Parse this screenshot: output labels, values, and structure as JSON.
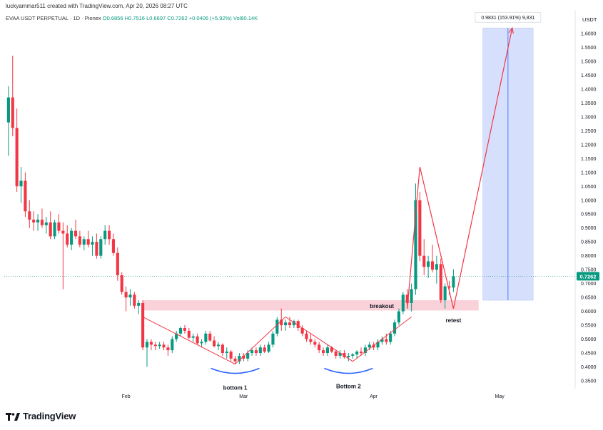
{
  "header": {
    "created_by": "luckyammar511 created with TradingView.com, Apr 20, 2026 08:27 UTC"
  },
  "ohlc_bar": {
    "symbol": "EVAA USDT PERPETUAL · 1D · Pionex",
    "open": "O0.6856",
    "high": "H0.7516",
    "low": "L0.6697",
    "close": "C0.7262",
    "change": "+0.0406 (+5.92%)",
    "volume": "Vol80.14K"
  },
  "logo": {
    "text": "TradingView",
    "icon": "tradingview-logo-icon"
  },
  "colors": {
    "up": "#089981",
    "down": "#f23645",
    "accent": "#2962ff",
    "zone": "#f7c6d0",
    "target_box": "#c9d6fb",
    "price_tag": "#089981"
  },
  "chart_data": {
    "type": "candlestick",
    "currency_label": "USDT",
    "ylim": [
      0.31,
      1.66
    ],
    "y_ticks": [
      "1.6000",
      "1.5500",
      "1.5000",
      "1.4500",
      "1.4000",
      "1.3500",
      "1.3000",
      "1.2500",
      "1.2000",
      "1.1500",
      "1.1000",
      "1.0500",
      "1.0000",
      "0.9500",
      "0.9000",
      "0.8500",
      "0.8000",
      "0.7500",
      "0.7000",
      "0.6500",
      "0.6000",
      "0.5500",
      "0.5000",
      "0.4500",
      "0.4000",
      "0.3500"
    ],
    "x_ticks": [
      {
        "label": "Feb",
        "date": "2026-02-01"
      },
      {
        "label": "Mar",
        "date": "2026-03-01"
      },
      {
        "label": "Apr",
        "date": "2026-04-01"
      },
      {
        "label": "May",
        "date": "2026-05-01"
      }
    ],
    "x_range": [
      "2026-01-03",
      "2026-05-19"
    ],
    "last_price": "0.7262",
    "candles": [
      {
        "d": "2026-01-04",
        "o": 1.28,
        "h": 1.41,
        "l": 1.16,
        "c": 1.37
      },
      {
        "d": "2026-01-05",
        "o": 1.37,
        "h": 1.52,
        "l": 1.23,
        "c": 1.26
      },
      {
        "d": "2026-01-06",
        "o": 1.26,
        "h": 1.33,
        "l": 1.03,
        "c": 1.05
      },
      {
        "d": "2026-01-07",
        "o": 1.05,
        "h": 1.12,
        "l": 0.99,
        "c": 1.07
      },
      {
        "d": "2026-01-08",
        "o": 1.07,
        "h": 1.1,
        "l": 0.94,
        "c": 0.96
      },
      {
        "d": "2026-01-09",
        "o": 0.96,
        "h": 1.0,
        "l": 0.9,
        "c": 0.93
      },
      {
        "d": "2026-01-10",
        "o": 0.93,
        "h": 0.96,
        "l": 0.89,
        "c": 0.92
      },
      {
        "d": "2026-01-11",
        "o": 0.92,
        "h": 0.95,
        "l": 0.89,
        "c": 0.93
      },
      {
        "d": "2026-01-12",
        "o": 0.93,
        "h": 0.97,
        "l": 0.9,
        "c": 0.91
      },
      {
        "d": "2026-01-13",
        "o": 0.91,
        "h": 0.94,
        "l": 0.88,
        "c": 0.92
      },
      {
        "d": "2026-01-14",
        "o": 0.92,
        "h": 0.96,
        "l": 0.86,
        "c": 0.87
      },
      {
        "d": "2026-01-15",
        "o": 0.87,
        "h": 0.93,
        "l": 0.86,
        "c": 0.92
      },
      {
        "d": "2026-01-16",
        "o": 0.92,
        "h": 0.95,
        "l": 0.88,
        "c": 0.89
      },
      {
        "d": "2026-01-17",
        "o": 0.89,
        "h": 0.92,
        "l": 0.68,
        "c": 0.88
      },
      {
        "d": "2026-01-18",
        "o": 0.88,
        "h": 0.91,
        "l": 0.83,
        "c": 0.84
      },
      {
        "d": "2026-01-19",
        "o": 0.84,
        "h": 0.9,
        "l": 0.82,
        "c": 0.89
      },
      {
        "d": "2026-01-20",
        "o": 0.89,
        "h": 0.93,
        "l": 0.86,
        "c": 0.87
      },
      {
        "d": "2026-01-21",
        "o": 0.87,
        "h": 0.89,
        "l": 0.83,
        "c": 0.84
      },
      {
        "d": "2026-01-22",
        "o": 0.84,
        "h": 0.87,
        "l": 0.82,
        "c": 0.86
      },
      {
        "d": "2026-01-23",
        "o": 0.86,
        "h": 0.89,
        "l": 0.83,
        "c": 0.84
      },
      {
        "d": "2026-01-24",
        "o": 0.84,
        "h": 0.87,
        "l": 0.8,
        "c": 0.85
      },
      {
        "d": "2026-01-25",
        "o": 0.85,
        "h": 0.88,
        "l": 0.79,
        "c": 0.8
      },
      {
        "d": "2026-01-26",
        "o": 0.8,
        "h": 0.87,
        "l": 0.79,
        "c": 0.86
      },
      {
        "d": "2026-01-27",
        "o": 0.86,
        "h": 0.91,
        "l": 0.84,
        "c": 0.89
      },
      {
        "d": "2026-01-28",
        "o": 0.89,
        "h": 0.91,
        "l": 0.84,
        "c": 0.86
      },
      {
        "d": "2026-01-29",
        "o": 0.86,
        "h": 0.88,
        "l": 0.8,
        "c": 0.81
      },
      {
        "d": "2026-01-30",
        "o": 0.81,
        "h": 0.83,
        "l": 0.71,
        "c": 0.73
      },
      {
        "d": "2026-01-31",
        "o": 0.73,
        "h": 0.74,
        "l": 0.66,
        "c": 0.67
      },
      {
        "d": "2026-02-01",
        "o": 0.67,
        "h": 0.69,
        "l": 0.6,
        "c": 0.65
      },
      {
        "d": "2026-02-02",
        "o": 0.65,
        "h": 0.68,
        "l": 0.62,
        "c": 0.66
      },
      {
        "d": "2026-02-03",
        "o": 0.66,
        "h": 0.67,
        "l": 0.61,
        "c": 0.62
      },
      {
        "d": "2026-02-04",
        "o": 0.62,
        "h": 0.64,
        "l": 0.59,
        "c": 0.63
      },
      {
        "d": "2026-02-05",
        "o": 0.63,
        "h": 0.64,
        "l": 0.46,
        "c": 0.47
      },
      {
        "d": "2026-02-06",
        "o": 0.47,
        "h": 0.5,
        "l": 0.4,
        "c": 0.49
      },
      {
        "d": "2026-02-07",
        "o": 0.49,
        "h": 0.5,
        "l": 0.46,
        "c": 0.48
      },
      {
        "d": "2026-02-08",
        "o": 0.48,
        "h": 0.49,
        "l": 0.46,
        "c": 0.475
      },
      {
        "d": "2026-02-09",
        "o": 0.475,
        "h": 0.49,
        "l": 0.465,
        "c": 0.48
      },
      {
        "d": "2026-02-10",
        "o": 0.48,
        "h": 0.49,
        "l": 0.46,
        "c": 0.47
      },
      {
        "d": "2026-02-11",
        "o": 0.47,
        "h": 0.48,
        "l": 0.44,
        "c": 0.46
      },
      {
        "d": "2026-02-12",
        "o": 0.46,
        "h": 0.51,
        "l": 0.45,
        "c": 0.5
      },
      {
        "d": "2026-02-13",
        "o": 0.5,
        "h": 0.53,
        "l": 0.49,
        "c": 0.52
      },
      {
        "d": "2026-02-14",
        "o": 0.52,
        "h": 0.545,
        "l": 0.51,
        "c": 0.54
      },
      {
        "d": "2026-02-15",
        "o": 0.54,
        "h": 0.55,
        "l": 0.52,
        "c": 0.53
      },
      {
        "d": "2026-02-16",
        "o": 0.53,
        "h": 0.54,
        "l": 0.5,
        "c": 0.505
      },
      {
        "d": "2026-02-17",
        "o": 0.505,
        "h": 0.52,
        "l": 0.49,
        "c": 0.51
      },
      {
        "d": "2026-02-18",
        "o": 0.51,
        "h": 0.52,
        "l": 0.48,
        "c": 0.485
      },
      {
        "d": "2026-02-19",
        "o": 0.485,
        "h": 0.5,
        "l": 0.47,
        "c": 0.49
      },
      {
        "d": "2026-02-20",
        "o": 0.49,
        "h": 0.53,
        "l": 0.48,
        "c": 0.52
      },
      {
        "d": "2026-02-21",
        "o": 0.52,
        "h": 0.53,
        "l": 0.49,
        "c": 0.495
      },
      {
        "d": "2026-02-22",
        "o": 0.495,
        "h": 0.51,
        "l": 0.47,
        "c": 0.475
      },
      {
        "d": "2026-02-23",
        "o": 0.475,
        "h": 0.49,
        "l": 0.46,
        "c": 0.48
      },
      {
        "d": "2026-02-24",
        "o": 0.48,
        "h": 0.485,
        "l": 0.44,
        "c": 0.45
      },
      {
        "d": "2026-02-25",
        "o": 0.45,
        "h": 0.47,
        "l": 0.43,
        "c": 0.455
      },
      {
        "d": "2026-02-26",
        "o": 0.455,
        "h": 0.46,
        "l": 0.42,
        "c": 0.43
      },
      {
        "d": "2026-02-27",
        "o": 0.43,
        "h": 0.44,
        "l": 0.41,
        "c": 0.42
      },
      {
        "d": "2026-02-28",
        "o": 0.42,
        "h": 0.45,
        "l": 0.41,
        "c": 0.44
      },
      {
        "d": "2026-03-01",
        "o": 0.44,
        "h": 0.45,
        "l": 0.42,
        "c": 0.43
      },
      {
        "d": "2026-03-02",
        "o": 0.43,
        "h": 0.46,
        "l": 0.42,
        "c": 0.45
      },
      {
        "d": "2026-03-03",
        "o": 0.45,
        "h": 0.47,
        "l": 0.44,
        "c": 0.46
      },
      {
        "d": "2026-03-04",
        "o": 0.46,
        "h": 0.47,
        "l": 0.44,
        "c": 0.45
      },
      {
        "d": "2026-03-05",
        "o": 0.45,
        "h": 0.48,
        "l": 0.44,
        "c": 0.47
      },
      {
        "d": "2026-03-06",
        "o": 0.47,
        "h": 0.48,
        "l": 0.45,
        "c": 0.455
      },
      {
        "d": "2026-03-07",
        "o": 0.455,
        "h": 0.49,
        "l": 0.45,
        "c": 0.48
      },
      {
        "d": "2026-03-08",
        "o": 0.48,
        "h": 0.53,
        "l": 0.47,
        "c": 0.52
      },
      {
        "d": "2026-03-09",
        "o": 0.52,
        "h": 0.58,
        "l": 0.51,
        "c": 0.57
      },
      {
        "d": "2026-03-10",
        "o": 0.57,
        "h": 0.61,
        "l": 0.53,
        "c": 0.55
      },
      {
        "d": "2026-03-11",
        "o": 0.55,
        "h": 0.57,
        "l": 0.53,
        "c": 0.56
      },
      {
        "d": "2026-03-12",
        "o": 0.56,
        "h": 0.58,
        "l": 0.54,
        "c": 0.55
      },
      {
        "d": "2026-03-13",
        "o": 0.55,
        "h": 0.57,
        "l": 0.54,
        "c": 0.565
      },
      {
        "d": "2026-03-14",
        "o": 0.565,
        "h": 0.57,
        "l": 0.53,
        "c": 0.54
      },
      {
        "d": "2026-03-15",
        "o": 0.54,
        "h": 0.55,
        "l": 0.51,
        "c": 0.52
      },
      {
        "d": "2026-03-16",
        "o": 0.52,
        "h": 0.53,
        "l": 0.49,
        "c": 0.5
      },
      {
        "d": "2026-03-17",
        "o": 0.5,
        "h": 0.52,
        "l": 0.48,
        "c": 0.49
      },
      {
        "d": "2026-03-18",
        "o": 0.49,
        "h": 0.5,
        "l": 0.47,
        "c": 0.48
      },
      {
        "d": "2026-03-19",
        "o": 0.48,
        "h": 0.49,
        "l": 0.45,
        "c": 0.46
      },
      {
        "d": "2026-03-20",
        "o": 0.46,
        "h": 0.47,
        "l": 0.44,
        "c": 0.45
      },
      {
        "d": "2026-03-21",
        "o": 0.45,
        "h": 0.48,
        "l": 0.44,
        "c": 0.47
      },
      {
        "d": "2026-03-22",
        "o": 0.47,
        "h": 0.475,
        "l": 0.45,
        "c": 0.455
      },
      {
        "d": "2026-03-23",
        "o": 0.455,
        "h": 0.46,
        "l": 0.43,
        "c": 0.44
      },
      {
        "d": "2026-03-24",
        "o": 0.44,
        "h": 0.46,
        "l": 0.43,
        "c": 0.45
      },
      {
        "d": "2026-03-25",
        "o": 0.45,
        "h": 0.46,
        "l": 0.43,
        "c": 0.435
      },
      {
        "d": "2026-03-26",
        "o": 0.435,
        "h": 0.45,
        "l": 0.42,
        "c": 0.44
      },
      {
        "d": "2026-03-27",
        "o": 0.44,
        "h": 0.45,
        "l": 0.43,
        "c": 0.445
      },
      {
        "d": "2026-03-28",
        "o": 0.445,
        "h": 0.46,
        "l": 0.43,
        "c": 0.455
      },
      {
        "d": "2026-03-29",
        "o": 0.455,
        "h": 0.47,
        "l": 0.44,
        "c": 0.45
      },
      {
        "d": "2026-03-30",
        "o": 0.45,
        "h": 0.48,
        "l": 0.44,
        "c": 0.47
      },
      {
        "d": "2026-03-31",
        "o": 0.47,
        "h": 0.49,
        "l": 0.46,
        "c": 0.48
      },
      {
        "d": "2026-04-01",
        "o": 0.48,
        "h": 0.49,
        "l": 0.46,
        "c": 0.47
      },
      {
        "d": "2026-04-02",
        "o": 0.47,
        "h": 0.5,
        "l": 0.46,
        "c": 0.49
      },
      {
        "d": "2026-04-03",
        "o": 0.49,
        "h": 0.51,
        "l": 0.48,
        "c": 0.5
      },
      {
        "d": "2026-04-04",
        "o": 0.5,
        "h": 0.52,
        "l": 0.48,
        "c": 0.49
      },
      {
        "d": "2026-04-05",
        "o": 0.49,
        "h": 0.53,
        "l": 0.48,
        "c": 0.52
      },
      {
        "d": "2026-04-06",
        "o": 0.52,
        "h": 0.57,
        "l": 0.51,
        "c": 0.56
      },
      {
        "d": "2026-04-07",
        "o": 0.56,
        "h": 0.61,
        "l": 0.55,
        "c": 0.6
      },
      {
        "d": "2026-04-08",
        "o": 0.6,
        "h": 0.67,
        "l": 0.59,
        "c": 0.66
      },
      {
        "d": "2026-04-09",
        "o": 0.66,
        "h": 0.68,
        "l": 0.61,
        "c": 0.63
      },
      {
        "d": "2026-04-10",
        "o": 0.63,
        "h": 0.7,
        "l": 0.6,
        "c": 0.68
      },
      {
        "d": "2026-04-11",
        "o": 0.68,
        "h": 1.06,
        "l": 0.66,
        "c": 1.0
      },
      {
        "d": "2026-04-12",
        "o": 1.0,
        "h": 1.03,
        "l": 0.78,
        "c": 0.8
      },
      {
        "d": "2026-04-13",
        "o": 0.8,
        "h": 0.86,
        "l": 0.73,
        "c": 0.76
      },
      {
        "d": "2026-04-14",
        "o": 0.76,
        "h": 0.8,
        "l": 0.72,
        "c": 0.78
      },
      {
        "d": "2026-04-15",
        "o": 0.78,
        "h": 0.84,
        "l": 0.74,
        "c": 0.75
      },
      {
        "d": "2026-04-16",
        "o": 0.75,
        "h": 0.8,
        "l": 0.7,
        "c": 0.77
      },
      {
        "d": "2026-04-17",
        "o": 0.77,
        "h": 0.79,
        "l": 0.63,
        "c": 0.64
      },
      {
        "d": "2026-04-18",
        "o": 0.64,
        "h": 0.7,
        "l": 0.61,
        "c": 0.69
      },
      {
        "d": "2026-04-19",
        "o": 0.69,
        "h": 0.71,
        "l": 0.66,
        "c": 0.6856
      },
      {
        "d": "2026-04-20",
        "o": 0.6856,
        "h": 0.7516,
        "l": 0.6697,
        "c": 0.7262
      }
    ],
    "annotations": {
      "breakout_zone": {
        "from": 0.603,
        "to": 0.64,
        "label": "breakout"
      },
      "retest_label": "retest",
      "bottom1_label": "bottom 1",
      "bottom2_label": "Bottom 2",
      "target_box": {
        "from_date": "2026-04-27",
        "to_date": "2026-05-09",
        "from": 0.64,
        "to": 1.62
      },
      "target_label": "0.9831 (153.91%) 9,831",
      "cup_path": [
        {
          "d": "2026-02-05",
          "v": 0.58
        },
        {
          "d": "2026-02-27",
          "v": 0.41
        },
        {
          "d": "2026-03-11",
          "v": 0.58
        },
        {
          "d": "2026-03-27",
          "v": 0.42
        },
        {
          "d": "2026-04-10",
          "v": 0.58
        }
      ],
      "projection_path": [
        {
          "d": "2026-04-09",
          "v": 0.61
        },
        {
          "d": "2026-04-12",
          "v": 1.12
        },
        {
          "d": "2026-04-20",
          "v": 0.61
        },
        {
          "d": "2026-05-04",
          "v": 1.62
        }
      ]
    }
  }
}
